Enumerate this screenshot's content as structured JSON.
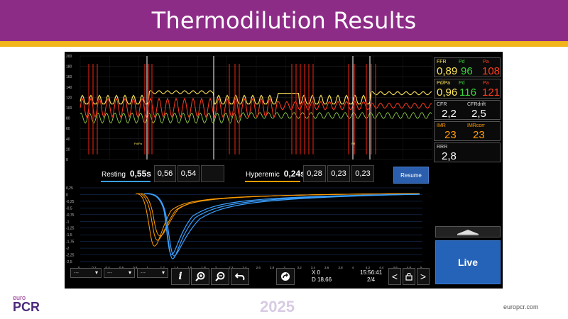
{
  "slide": {
    "title": "Thermodilution Results",
    "year": "2025",
    "logo_top": "euro",
    "logo_main": "PCR",
    "url": "europcr.com"
  },
  "upper_plot": {
    "y_ticks": [
      "200",
      "180",
      "160",
      "140",
      "120",
      "100",
      "80",
      "60",
      "40",
      "20",
      "0"
    ],
    "markers": [
      "Pd/Pa",
      "FR"
    ]
  },
  "indices": {
    "resting_label": "Resting",
    "resting_mean": "0,55s",
    "resting_values": [
      "0,56",
      "0,54",
      ""
    ],
    "hyperemic_label": "Hyperemic",
    "hyperemic_mean": "0,24s",
    "hyperemic_values": [
      "0,28",
      "0,23",
      "0,23"
    ],
    "resume_label": "Resume"
  },
  "lower_plot": {
    "y_ticks": [
      "0,25",
      "0",
      "-0,25",
      "-0,5",
      "-0,75",
      "-1",
      "-1,25",
      "-1,5",
      "-1,75",
      "-2",
      "-2,25",
      "-2,5"
    ],
    "x_ticks": [
      "0",
      "0,2",
      "0,4",
      "0,6",
      "0,8",
      "1",
      "1,2",
      "1,4",
      "1,6",
      "1,8",
      "2",
      "2,2",
      "2,4",
      "2,6",
      "2,8",
      "3",
      "3,2",
      "3,4",
      "3,6",
      "3,8",
      "4",
      "4,2",
      "4,4",
      "4,6",
      "4,8",
      "5"
    ]
  },
  "sidebar": {
    "ffr": {
      "l1": "FFR",
      "l2": "Pd",
      "l3": "Pa",
      "v1": "0,89",
      "v2": "96",
      "v3": "108"
    },
    "pdpa": {
      "l1": "Pd/Pa",
      "l2": "Pd",
      "l3": "Pa",
      "v1": "0,96",
      "v2": "116",
      "v3": "121"
    },
    "cfr": {
      "l1": "CFR",
      "l2": "CFRdrift",
      "v1": "2,2",
      "v2": "2,5"
    },
    "imr": {
      "l1": "IMR",
      "l2": "IMRcorr",
      "v1": "23",
      "v2": "23"
    },
    "rrr": {
      "l1": "RRR",
      "v1": "2,8"
    },
    "live_label": "Live"
  },
  "toolbar": {
    "dropdowns": [
      "---",
      "---",
      "---"
    ],
    "x_readout": "X 0",
    "d_readout": "D 18,66",
    "time": "15:56:41",
    "page": "2/4"
  },
  "colors": {
    "title_bar": "#8d2c87",
    "underline": "#f2b51a",
    "pa_trace": "#ffe85a",
    "pd_trace": "#ff3b1f",
    "ecg_trace": "#9be04a",
    "resting_curve": "#3aa0ff",
    "hyperemic_curve": "#ff9d00",
    "live_button": "#2563b8"
  }
}
